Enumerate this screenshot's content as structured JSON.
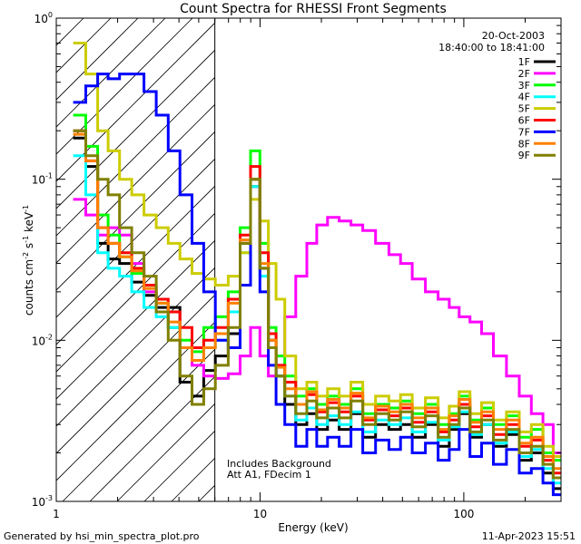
{
  "chart_data": {
    "type": "line",
    "title": "Count Spectra for RHESSI Front Segments",
    "xlabel": "Energy (keV)",
    "ylabel_parts": [
      "counts cm",
      "-2",
      " s",
      "-1",
      " keV",
      "-1"
    ],
    "xscale": "log",
    "yscale": "log",
    "xlim": [
      1,
      300
    ],
    "ylim": [
      0.001,
      1
    ],
    "x_tick_labels": [
      {
        "value": 1,
        "label": "1"
      },
      {
        "value": 10,
        "label": "10"
      },
      {
        "value": 100,
        "label": "100"
      }
    ],
    "y_tick_labels": [
      {
        "value": 0.001,
        "base": "10",
        "exp": "-3"
      },
      {
        "value": 0.01,
        "base": "10",
        "exp": "-2"
      },
      {
        "value": 0.1,
        "base": "10",
        "exp": "-1"
      },
      {
        "value": 1,
        "base": "10",
        "exp": "0"
      }
    ],
    "hatched_region_keV": [
      1,
      6
    ],
    "date": "20-Oct-2003",
    "time_range": "18:40:00 to 18:41:00",
    "annotations": [
      "Includes Background",
      "Att A1, FDecim 1"
    ],
    "footer_left": "Generated by hsi_min_spectra_plot.pro",
    "footer_right": "11-Apr-2023 15:51",
    "legend_position": "top-right",
    "series": [
      {
        "name": "1F",
        "color": "#000000",
        "x": [
          1.3,
          1.5,
          1.7,
          1.9,
          2.2,
          2.5,
          2.9,
          3.3,
          3.8,
          4.3,
          5.0,
          5.6,
          6.5,
          7.5,
          8.5,
          9.5,
          10.5,
          11.5,
          12.5,
          14,
          16,
          18,
          20,
          23,
          26,
          30,
          34,
          40,
          46,
          52,
          60,
          70,
          80,
          90,
          100,
          115,
          130,
          150,
          175,
          200,
          230,
          260,
          290
        ],
        "values": [
          0.18,
          0.12,
          0.04,
          0.032,
          0.03,
          0.023,
          0.019,
          0.016,
          0.016,
          0.0055,
          0.0045,
          0.0065,
          0.008,
          0.011,
          0.04,
          0.09,
          0.028,
          0.01,
          0.006,
          0.004,
          0.003,
          0.0035,
          0.0028,
          0.0032,
          0.0028,
          0.0035,
          0.0025,
          0.003,
          0.0028,
          0.003,
          0.0025,
          0.003,
          0.0022,
          0.0028,
          0.0035,
          0.0025,
          0.003,
          0.0022,
          0.0026,
          0.0018,
          0.002,
          0.0015,
          0.0012
        ]
      },
      {
        "name": "2F",
        "color": "#ff00ff",
        "x": [
          1.3,
          1.5,
          1.7,
          1.9,
          2.2,
          2.5,
          2.9,
          3.3,
          3.8,
          4.3,
          5.0,
          5.6,
          6.5,
          7.5,
          8.5,
          9.5,
          10.5,
          11.5,
          12.5,
          14,
          16,
          18,
          20,
          23,
          26,
          30,
          34,
          40,
          46,
          52,
          60,
          70,
          80,
          90,
          100,
          115,
          130,
          150,
          175,
          200,
          230,
          260,
          290
        ],
        "values": [
          0.075,
          0.06,
          0.045,
          0.05,
          0.045,
          0.03,
          0.02,
          0.015,
          0.012,
          0.009,
          0.007,
          0.006,
          0.0058,
          0.0062,
          0.008,
          0.012,
          0.008,
          0.006,
          0.008,
          0.014,
          0.025,
          0.04,
          0.052,
          0.058,
          0.055,
          0.052,
          0.048,
          0.04,
          0.034,
          0.03,
          0.024,
          0.02,
          0.018,
          0.016,
          0.014,
          0.013,
          0.011,
          0.008,
          0.006,
          0.0045,
          0.0035,
          0.003,
          0.002
        ]
      },
      {
        "name": "3F",
        "color": "#00ff00",
        "x": [
          1.3,
          1.5,
          1.7,
          1.9,
          2.2,
          2.5,
          2.9,
          3.3,
          3.8,
          4.3,
          5.0,
          5.6,
          6.5,
          7.5,
          8.5,
          9.5,
          10.5,
          11.5,
          12.5,
          14,
          16,
          18,
          20,
          23,
          26,
          30,
          34,
          40,
          46,
          52,
          60,
          70,
          80,
          90,
          100,
          115,
          130,
          150,
          175,
          200,
          230,
          260,
          290
        ],
        "values": [
          0.25,
          0.16,
          0.06,
          0.045,
          0.033,
          0.026,
          0.021,
          0.017,
          0.012,
          0.01,
          0.0085,
          0.012,
          0.014,
          0.02,
          0.05,
          0.15,
          0.04,
          0.012,
          0.008,
          0.006,
          0.0045,
          0.005,
          0.004,
          0.0045,
          0.004,
          0.005,
          0.0035,
          0.004,
          0.0038,
          0.0042,
          0.0035,
          0.004,
          0.003,
          0.0035,
          0.0045,
          0.0032,
          0.0038,
          0.003,
          0.0034,
          0.0025,
          0.0028,
          0.002,
          0.0018
        ]
      },
      {
        "name": "4F",
        "color": "#00ffff",
        "x": [
          1.3,
          1.5,
          1.7,
          1.9,
          2.2,
          2.5,
          2.9,
          3.3,
          3.8,
          4.3,
          5.0,
          5.6,
          6.5,
          7.5,
          8.5,
          9.5,
          10.5,
          11.5,
          12.5,
          14,
          16,
          18,
          20,
          23,
          26,
          30,
          34,
          40,
          46,
          52,
          60,
          70,
          80,
          90,
          100,
          115,
          130,
          150,
          175,
          200,
          230,
          260,
          290
        ],
        "values": [
          0.14,
          0.08,
          0.035,
          0.028,
          0.025,
          0.02,
          0.016,
          0.014,
          0.012,
          0.009,
          0.0075,
          0.009,
          0.01,
          0.015,
          0.035,
          0.09,
          0.025,
          0.009,
          0.006,
          0.0045,
          0.0032,
          0.0038,
          0.003,
          0.0034,
          0.003,
          0.0036,
          0.0027,
          0.0032,
          0.003,
          0.0033,
          0.0027,
          0.0031,
          0.0024,
          0.0029,
          0.0036,
          0.0026,
          0.003,
          0.0023,
          0.0027,
          0.0019,
          0.0021,
          0.0016,
          0.0013
        ]
      },
      {
        "name": "5F",
        "color": "#cccc00",
        "x": [
          1.3,
          1.5,
          1.7,
          1.9,
          2.2,
          2.5,
          2.9,
          3.3,
          3.8,
          4.3,
          5.0,
          5.6,
          6.5,
          7.5,
          8.5,
          9.5,
          10.5,
          11.5,
          12.5,
          14,
          16,
          18,
          20,
          23,
          26,
          30,
          34,
          40,
          46,
          52,
          60,
          70,
          80,
          90,
          100,
          115,
          130,
          150,
          175,
          200,
          230,
          260,
          290
        ],
        "values": [
          0.7,
          0.45,
          0.2,
          0.15,
          0.1,
          0.08,
          0.06,
          0.05,
          0.04,
          0.032,
          0.026,
          0.024,
          0.022,
          0.025,
          0.035,
          0.075,
          0.055,
          0.03,
          0.018,
          0.008,
          0.005,
          0.0055,
          0.0045,
          0.005,
          0.0045,
          0.0055,
          0.004,
          0.0045,
          0.0042,
          0.0046,
          0.0038,
          0.0044,
          0.0033,
          0.0039,
          0.0048,
          0.0035,
          0.0041,
          0.0032,
          0.0036,
          0.0027,
          0.003,
          0.0022,
          0.0019
        ]
      },
      {
        "name": "6F",
        "color": "#ff0000",
        "x": [
          1.3,
          1.5,
          1.7,
          1.9,
          2.2,
          2.5,
          2.9,
          3.3,
          3.8,
          4.3,
          5.0,
          5.6,
          6.5,
          7.5,
          8.5,
          9.5,
          10.5,
          11.5,
          12.5,
          14,
          16,
          18,
          20,
          23,
          26,
          30,
          34,
          40,
          46,
          52,
          60,
          70,
          80,
          90,
          100,
          115,
          130,
          150,
          175,
          200,
          230,
          260,
          290
        ],
        "values": [
          0.2,
          0.13,
          0.05,
          0.04,
          0.035,
          0.028,
          0.022,
          0.018,
          0.015,
          0.012,
          0.009,
          0.01,
          0.012,
          0.018,
          0.045,
          0.12,
          0.035,
          0.011,
          0.007,
          0.0055,
          0.004,
          0.0046,
          0.0036,
          0.0041,
          0.0036,
          0.0045,
          0.0032,
          0.0037,
          0.0034,
          0.0038,
          0.0031,
          0.0036,
          0.0027,
          0.0032,
          0.004,
          0.0029,
          0.0034,
          0.0026,
          0.003,
          0.0022,
          0.0024,
          0.0018,
          0.0015
        ]
      },
      {
        "name": "7F",
        "color": "#0000ff",
        "x": [
          1.3,
          1.5,
          1.7,
          1.9,
          2.2,
          2.5,
          2.9,
          3.3,
          3.8,
          4.3,
          5.0,
          5.6,
          6.5,
          7.5,
          8.5,
          9.5,
          10.5,
          11.5,
          12.5,
          14,
          16,
          18,
          20,
          23,
          26,
          30,
          34,
          40,
          46,
          52,
          60,
          70,
          80,
          90,
          100,
          115,
          130,
          150,
          175,
          200,
          230,
          260,
          290
        ],
        "values": [
          0.3,
          0.38,
          0.45,
          0.42,
          0.45,
          0.45,
          0.35,
          0.25,
          0.15,
          0.08,
          0.04,
          0.02,
          0.01,
          0.009,
          0.022,
          0.1,
          0.02,
          0.007,
          0.004,
          0.003,
          0.0022,
          0.0028,
          0.0022,
          0.0025,
          0.0022,
          0.0028,
          0.002,
          0.0024,
          0.0021,
          0.0025,
          0.002,
          0.0023,
          0.0018,
          0.0021,
          0.0028,
          0.0019,
          0.0023,
          0.0017,
          0.0021,
          0.0015,
          0.0016,
          0.0013,
          0.0011
        ]
      },
      {
        "name": "8F",
        "color": "#ff8000",
        "x": [
          1.3,
          1.5,
          1.7,
          1.9,
          2.2,
          2.5,
          2.9,
          3.3,
          3.8,
          4.3,
          5.0,
          5.6,
          6.5,
          7.5,
          8.5,
          9.5,
          10.5,
          11.5,
          12.5,
          14,
          16,
          18,
          20,
          23,
          26,
          30,
          34,
          40,
          46,
          52,
          60,
          70,
          80,
          90,
          100,
          115,
          130,
          150,
          175,
          200,
          230,
          260,
          290
        ],
        "values": [
          0.19,
          0.13,
          0.05,
          0.04,
          0.033,
          0.027,
          0.021,
          0.017,
          0.013,
          0.009,
          0.0075,
          0.009,
          0.011,
          0.017,
          0.042,
          0.1,
          0.03,
          0.01,
          0.0068,
          0.005,
          0.004,
          0.0048,
          0.0037,
          0.0043,
          0.0038,
          0.0047,
          0.0033,
          0.0039,
          0.0036,
          0.004,
          0.0033,
          0.0038,
          0.0028,
          0.0034,
          0.0043,
          0.0031,
          0.0036,
          0.0028,
          0.0032,
          0.0023,
          0.0025,
          0.0019,
          0.0016
        ]
      },
      {
        "name": "9F",
        "color": "#808000",
        "x": [
          1.3,
          1.5,
          1.7,
          1.9,
          2.2,
          2.5,
          2.9,
          3.3,
          3.8,
          4.3,
          5.0,
          5.6,
          6.5,
          7.5,
          8.5,
          9.5,
          10.5,
          11.5,
          12.5,
          14,
          16,
          18,
          20,
          23,
          26,
          30,
          34,
          40,
          46,
          52,
          60,
          70,
          80,
          90,
          100,
          115,
          130,
          150,
          175,
          200,
          230,
          260,
          290
        ],
        "values": [
          0.2,
          0.14,
          0.1,
          0.08,
          0.05,
          0.035,
          0.025,
          0.015,
          0.01,
          0.006,
          0.004,
          0.005,
          0.007,
          0.012,
          0.04,
          0.1,
          0.028,
          0.009,
          0.006,
          0.0045,
          0.0035,
          0.0042,
          0.0033,
          0.0038,
          0.0033,
          0.0042,
          0.003,
          0.0035,
          0.0032,
          0.0036,
          0.0029,
          0.0034,
          0.0025,
          0.003,
          0.0038,
          0.0027,
          0.0032,
          0.0024,
          0.0028,
          0.002,
          0.0022,
          0.0017,
          0.0014
        ]
      }
    ]
  }
}
